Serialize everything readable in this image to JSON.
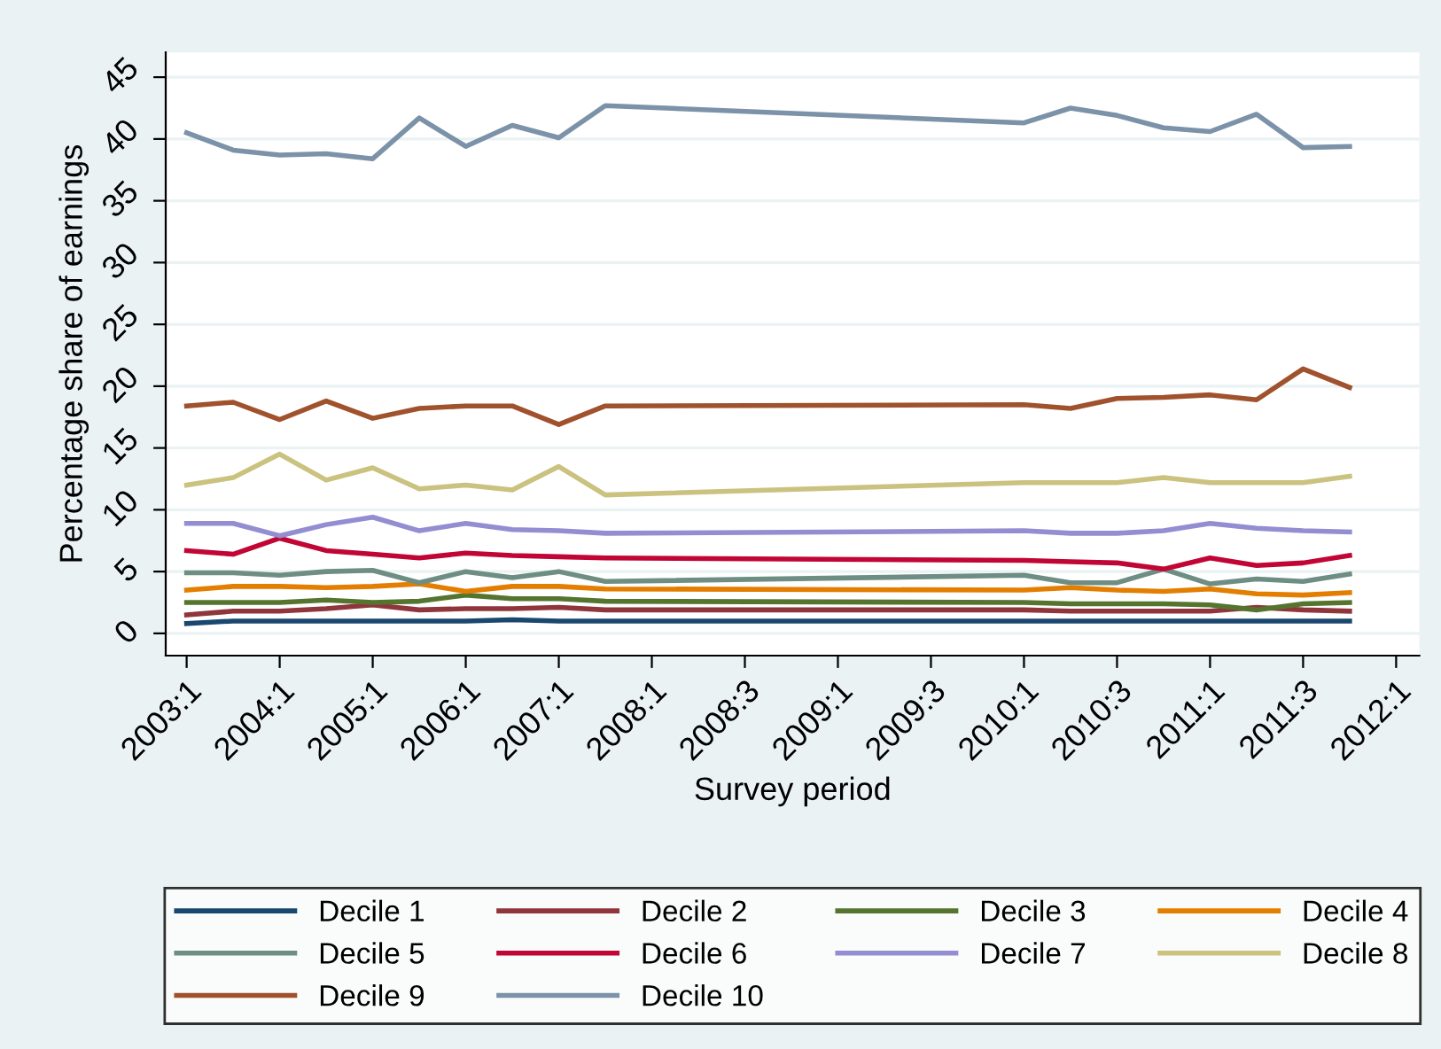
{
  "chart_data": {
    "type": "line",
    "xlabel": "Survey period",
    "ylabel": "Percentage share of earnings",
    "categories": [
      "2003:1",
      null,
      "2004:1",
      null,
      "2005:1",
      null,
      "2006:1",
      null,
      "2007:1",
      null,
      "2008:1",
      null,
      "2008:3",
      null,
      "2009:1",
      null,
      "2009:3",
      null,
      "2010:1",
      null,
      "2010:3",
      null,
      "2011:1",
      null,
      "2011:3",
      null,
      "2012:1"
    ],
    "series": [
      {
        "name": "Decile 1",
        "color": "#1a476f",
        "values": [
          0.8,
          1.0,
          1.0,
          1.0,
          1.0,
          1.0,
          1.0,
          1.1,
          1.0,
          1.0,
          null,
          null,
          null,
          null,
          null,
          null,
          null,
          null,
          1.0,
          1.0,
          1.0,
          1.0,
          1.0,
          1.0,
          1.0,
          1.0,
          null
        ]
      },
      {
        "name": "Decile 2",
        "color": "#90353b",
        "values": [
          1.5,
          1.8,
          1.8,
          2.0,
          2.3,
          1.9,
          2.0,
          2.0,
          2.1,
          1.9,
          null,
          null,
          null,
          null,
          null,
          null,
          null,
          null,
          1.9,
          1.8,
          1.8,
          1.8,
          1.8,
          2.1,
          1.9,
          1.8,
          null
        ]
      },
      {
        "name": "Decile 3",
        "color": "#55752f",
        "values": [
          2.5,
          2.5,
          2.5,
          2.7,
          2.5,
          2.6,
          3.1,
          2.8,
          2.8,
          2.6,
          null,
          null,
          null,
          null,
          null,
          null,
          null,
          null,
          2.5,
          2.4,
          2.4,
          2.4,
          2.3,
          1.9,
          2.4,
          2.5,
          null
        ]
      },
      {
        "name": "Decile 4",
        "color": "#e37e00",
        "values": [
          3.5,
          3.8,
          3.8,
          3.7,
          3.8,
          4.0,
          3.4,
          3.8,
          3.8,
          3.6,
          null,
          null,
          null,
          null,
          null,
          null,
          null,
          null,
          3.5,
          3.7,
          3.5,
          3.4,
          3.6,
          3.2,
          3.1,
          3.3,
          null
        ]
      },
      {
        "name": "Decile 5",
        "color": "#6e8e84",
        "values": [
          4.9,
          4.9,
          4.7,
          5.0,
          5.1,
          4.1,
          5.0,
          4.5,
          5.0,
          4.2,
          null,
          null,
          null,
          null,
          null,
          null,
          null,
          null,
          4.7,
          4.1,
          4.1,
          5.2,
          4.0,
          4.4,
          4.2,
          4.8,
          null
        ]
      },
      {
        "name": "Decile 6",
        "color": "#c10534",
        "values": [
          6.7,
          6.4,
          7.7,
          6.7,
          6.4,
          6.1,
          6.5,
          6.3,
          6.2,
          6.1,
          null,
          null,
          null,
          null,
          null,
          null,
          null,
          null,
          5.9,
          5.8,
          5.7,
          5.2,
          6.1,
          5.5,
          5.7,
          6.3,
          null
        ]
      },
      {
        "name": "Decile 7",
        "color": "#938dd2",
        "values": [
          8.9,
          8.9,
          7.9,
          8.8,
          9.4,
          8.3,
          8.9,
          8.4,
          8.3,
          8.1,
          null,
          null,
          null,
          null,
          null,
          null,
          null,
          null,
          8.3,
          8.1,
          8.1,
          8.3,
          8.9,
          8.5,
          8.3,
          8.2,
          null
        ]
      },
      {
        "name": "Decile 8",
        "color": "#cac27e",
        "values": [
          12.0,
          12.6,
          14.5,
          12.4,
          13.4,
          11.7,
          12.0,
          11.6,
          13.5,
          11.2,
          null,
          null,
          null,
          null,
          null,
          null,
          null,
          null,
          12.2,
          12.2,
          12.2,
          12.6,
          12.2,
          12.2,
          12.2,
          12.7,
          null
        ]
      },
      {
        "name": "Decile 9",
        "color": "#a0522d",
        "values": [
          18.4,
          18.7,
          17.3,
          18.8,
          17.4,
          18.2,
          18.4,
          18.4,
          16.9,
          18.4,
          null,
          null,
          null,
          null,
          null,
          null,
          null,
          null,
          18.5,
          18.2,
          19.0,
          19.1,
          19.3,
          18.9,
          21.4,
          19.9,
          null
        ]
      },
      {
        "name": "Decile 10",
        "color": "#7b92a8",
        "values": [
          40.5,
          39.1,
          38.7,
          38.8,
          38.4,
          41.7,
          39.4,
          41.1,
          40.1,
          42.7,
          null,
          null,
          null,
          null,
          null,
          null,
          null,
          null,
          41.3,
          42.5,
          41.9,
          40.9,
          40.6,
          42.0,
          39.3,
          39.4,
          null
        ]
      }
    ],
    "ylim": [
      -1.8,
      47
    ],
    "yticks": [
      0,
      5,
      10,
      15,
      20,
      25,
      30,
      35,
      40,
      45
    ],
    "grid": "y",
    "legend": "bottom",
    "marker": "none",
    "line_style": "solid"
  }
}
